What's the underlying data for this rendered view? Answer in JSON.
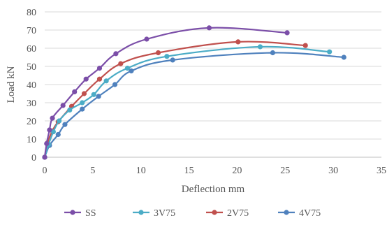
{
  "chart_data": {
    "type": "line",
    "xlabel": "Deflection mm",
    "ylabel": "Load kN",
    "xlim": [
      0,
      35
    ],
    "ylim": [
      0,
      80
    ],
    "xticks": [
      0,
      5,
      10,
      15,
      20,
      25,
      30,
      35
    ],
    "yticks": [
      0,
      10,
      20,
      30,
      40,
      50,
      60,
      70,
      80
    ],
    "grid": "horizontal",
    "legend_position": "bottom",
    "series": [
      {
        "name": "SS",
        "color": "#7b4ea8",
        "points": [
          [
            0,
            0
          ],
          [
            0.2,
            7.5
          ],
          [
            0.5,
            15
          ],
          [
            0.8,
            21.5
          ],
          [
            1.9,
            28.5
          ],
          [
            3.1,
            36
          ],
          [
            4.3,
            43
          ],
          [
            5.7,
            49
          ],
          [
            7.4,
            57
          ],
          [
            10.6,
            65
          ],
          [
            17.1,
            71.2
          ],
          [
            25.2,
            68.5
          ]
        ]
      },
      {
        "name": "3V75",
        "color": "#4bacc6",
        "points": [
          [
            0,
            0
          ],
          [
            0.4,
            7
          ],
          [
            0.9,
            14
          ],
          [
            1.5,
            20
          ],
          [
            2.6,
            26
          ],
          [
            3.9,
            30
          ],
          [
            5.1,
            34.5
          ],
          [
            6.4,
            42
          ],
          [
            8.6,
            49
          ],
          [
            12.7,
            55.5
          ],
          [
            22.4,
            60.8
          ],
          [
            29.6,
            58
          ]
        ]
      },
      {
        "name": "2V75",
        "color": "#c0504d",
        "points": [
          [
            0,
            0
          ],
          [
            0.3,
            8
          ],
          [
            0.8,
            14.5
          ],
          [
            1.4,
            19.5
          ],
          [
            2.8,
            28
          ],
          [
            4.1,
            35
          ],
          [
            5.7,
            43
          ],
          [
            7.9,
            51.5
          ],
          [
            11.8,
            57.5
          ],
          [
            20.1,
            63.5
          ],
          [
            27.1,
            61.5
          ]
        ]
      },
      {
        "name": "4V75",
        "color": "#4f81bd",
        "points": [
          [
            0,
            0
          ],
          [
            0.5,
            6.5
          ],
          [
            1.4,
            12.5
          ],
          [
            2.1,
            18
          ],
          [
            3.9,
            26.5
          ],
          [
            5.6,
            33.5
          ],
          [
            7.3,
            40
          ],
          [
            9.0,
            47.5
          ],
          [
            13.3,
            53.5
          ],
          [
            23.7,
            57.5
          ],
          [
            31.1,
            55
          ]
        ]
      }
    ]
  }
}
